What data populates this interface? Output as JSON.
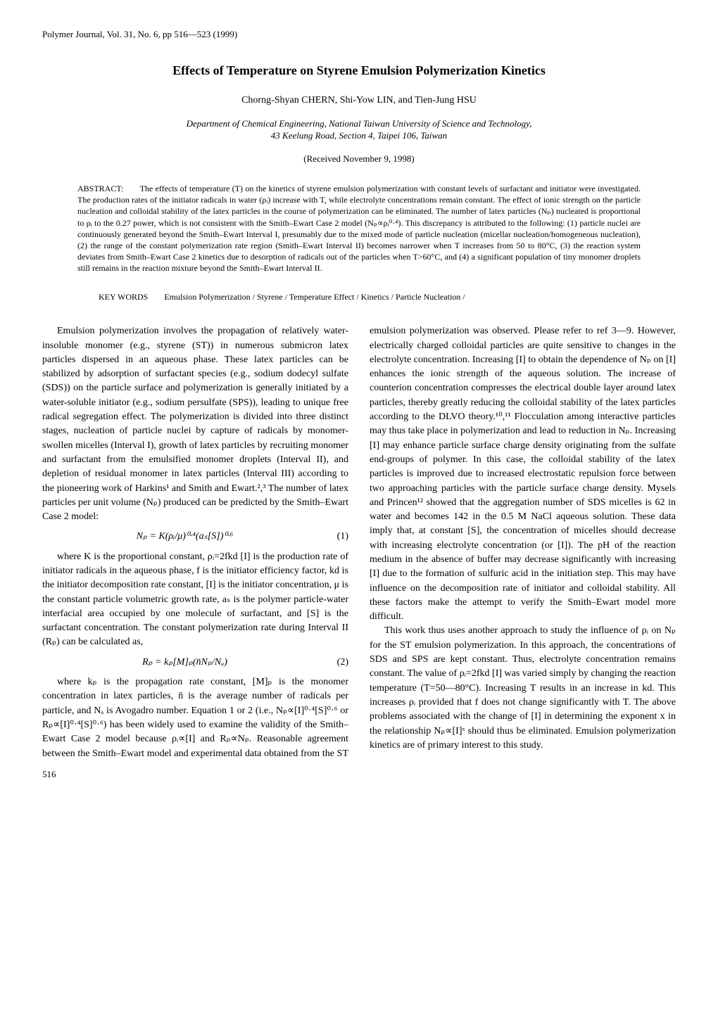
{
  "journal_ref": "Polymer Journal, Vol. 31, No. 6, pp 516—523 (1999)",
  "title": "Effects of Temperature on Styrene Emulsion Polymerization Kinetics",
  "authors": "Chorng-Shyan CHERN, Shi-Yow LIN, and Tien-Jung HSU",
  "affiliation_line1": "Department of Chemical Engineering, National Taiwan University of Science and Technology,",
  "affiliation_line2": "43 Keelung Road, Section 4, Taipei 106, Taiwan",
  "received": "(Received November 9, 1998)",
  "abstract_label": "ABSTRACT:",
  "abstract_text": "The effects of temperature (T) on the kinetics of styrene emulsion polymerization with constant levels of surfactant and initiator were investigated. The production rates of the initiator radicals in water (ρᵢ) increase with T, while electrolyte concentrations remain constant. The effect of ionic strength on the particle nucleation and colloidal stability of the latex particles in the course of polymerization can be eliminated. The number of latex particles (Nₚ) nucleated is proportional to ρᵢ to the 0.27 power, which is not consistent with the Smith–Ewart Case 2 model (Nₚ∝ρᵢ⁰·⁴). This discrepancy is attributed to the following: (1) particle nuclei are continuously generated beyond the Smith–Ewart Interval I, presumably due to the mixed mode of particle nucleation (micellar nucleation/homogeneous nucleation), (2) the range of the constant polymerization rate region (Smith–Ewart Interval II) becomes narrower when T increases from 50 to 80°C, (3) the reaction system deviates from Smith–Ewart Case 2 kinetics due to desorption of radicals out of the particles when T>60°C, and (4) a significant population of tiny monomer droplets still remains in the reaction mixture beyond the Smith–Ewart Interval II.",
  "keywords_label": "KEY WORDS",
  "keywords_text": "Emulsion Polymerization / Styrene / Temperature Effect / Kinetics / Particle Nucleation /",
  "body": {
    "p1": "Emulsion polymerization involves the propagation of relatively water-insoluble monomer (e.g., styrene (ST)) in numerous submicron latex particles dispersed in an aqueous phase. These latex particles can be stabilized by adsorption of surfactant species (e.g., sodium dodecyl sulfate (SDS)) on the particle surface and polymerization is generally initiated by a water-soluble initiator (e.g., sodium persulfate (SPS)), leading to unique free radical segregation effect. The polymerization is divided into three distinct stages, nucleation of particle nuclei by capture of radicals by monomer-swollen micelles (Interval I), growth of latex particles by recruiting monomer and surfactant from the emulsified monomer droplets (Interval II), and depletion of residual monomer in latex particles (Interval III) according to the pioneering work of Harkins¹ and Smith and Ewart.²,³ The number of latex particles per unit volume (Nₚ) produced can be predicted by the Smith–Ewart Case 2 model:",
    "eq1": "Nₚ = K(ρᵢ/μ)⁰·⁴(aₛ[S])⁰·⁶",
    "eq1_num": "(1)",
    "p2": "where K is the proportional constant, ρᵢ=2fkd [I] is the production rate of initiator radicals in the aqueous phase, f is the initiator efficiency factor, kd is the initiator decomposition rate constant, [I] is the initiator concentration, μ is the constant particle volumetric growth rate, aₛ is the polymer particle-water interfacial area occupied by one molecule of surfactant, and [S] is the surfactant concentration. The constant polymerization rate during Interval II (Rₚ) can be calculated as,",
    "eq2": "Rₚ = kₚ[M]ₚ(n̄Nₚ/Nₐ)",
    "eq2_num": "(2)",
    "p3": "where kₚ is the propagation rate constant, [M]ₚ is the monomer concentration in latex particles, n̄ is the average number of radicals per particle, and Nₐ is Avogadro number. Equation 1 or 2 (i.e., Nₚ∝[I]⁰·⁴[S]⁰·⁶ or Rₚ∝[I]⁰·⁴[S]⁰·⁶) has been widely used to examine the validity of the Smith–Ewart Case 2 model because ρᵢ∝[I] and Rₚ∝Nₚ. Reasonable agreement between the Smith–Ewart model and experimental data obtained from the ST emulsion polymerization was observed. Please refer to ref 3—9. However, electrically charged colloidal particles are quite sensitive to changes in the electrolyte concentration. Increasing [I] to obtain the dependence of Nₚ on [I] enhances the ionic strength of the aqueous solution. The increase of counterion concentration compresses the electrical double layer around latex particles, thereby greatly reducing the colloidal stability of the latex particles according to the DLVO theory.¹⁰,¹¹ Flocculation among interactive particles may thus take place in polymerization and lead to reduction in Nₚ. Increasing [I] may enhance particle surface charge density originating from the sulfate end-groups of polymer. In this case, the colloidal stability of the latex particles is improved due to increased electrostatic repulsion force between two approaching particles with the particle surface charge density. Mysels and Princen¹² showed that the aggregation number of SDS micelles is 62 in water and becomes 142 in the 0.5 M NaCl aqueous solution. These data imply that, at constant [S], the concentration of micelles should decrease with increasing electrolyte concentration (or [I]). The pH of the reaction medium in the absence of buffer may decrease significantly with increasing [I] due to the formation of sulfuric acid in the initiation step. This may have influence on the decomposition rate of initiator and colloidal stability. All these factors make the attempt to verify the Smith–Ewart model more difficult.",
    "p4": "This work thus uses another approach to study the influence of ρᵢ on Nₚ for the ST emulsion polymerization. In this approach, the concentrations of SDS and SPS are kept constant. Thus, electrolyte concentration remains constant. The value of ρᵢ=2fkd [I] was varied simply by changing the reaction temperature (T=50—80°C). Increasing T results in an increase in kd. This increases ρᵢ provided that f does not change significantly with T. The above problems associated with the change of [I] in determining the exponent x in the relationship Nₚ∝[I]ˣ should thus be eliminated. Emulsion polymerization kinetics are of primary interest to this study."
  },
  "page_number": "516"
}
